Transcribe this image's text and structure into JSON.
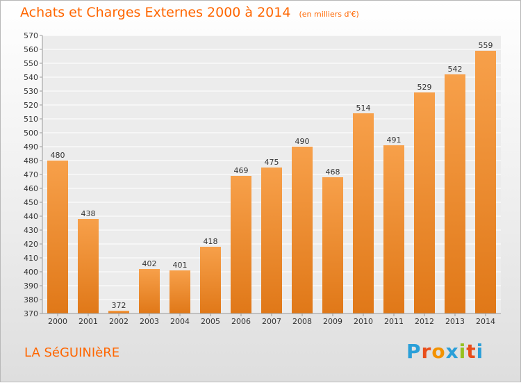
{
  "header": {
    "title": "Achats et Charges Externes 2000 à 2014",
    "subtitle": "(en milliers d'€)"
  },
  "footer": {
    "commune": "LA SéGUINIèRE",
    "logo_letters": [
      "P",
      "r",
      "o",
      "x",
      "i",
      "t",
      "i"
    ],
    "logo_colors": [
      "#2a9fd8",
      "#e94e1b",
      "#f39200",
      "#2a9fd8",
      "#95c11f",
      "#e94e1b",
      "#2a9fd8"
    ]
  },
  "colors": {
    "title": "#ff6600",
    "bar_light": "#f7a04a",
    "bar_dark": "#e07818",
    "grid": "#ffffff",
    "text": "#333333"
  },
  "chart_data": {
    "type": "bar",
    "categories": [
      "2000",
      "2001",
      "2002",
      "2003",
      "2004",
      "2005",
      "2006",
      "2007",
      "2008",
      "2009",
      "2010",
      "2011",
      "2012",
      "2013",
      "2014"
    ],
    "values": [
      480,
      438,
      372,
      402,
      401,
      418,
      469,
      475,
      490,
      468,
      514,
      491,
      529,
      542,
      559
    ],
    "ylim": [
      370,
      570
    ],
    "yticks": [
      370,
      380,
      390,
      400,
      410,
      420,
      430,
      440,
      450,
      460,
      470,
      480,
      490,
      500,
      510,
      520,
      530,
      540,
      550,
      560,
      570
    ],
    "grid": true,
    "data_labels": true
  }
}
